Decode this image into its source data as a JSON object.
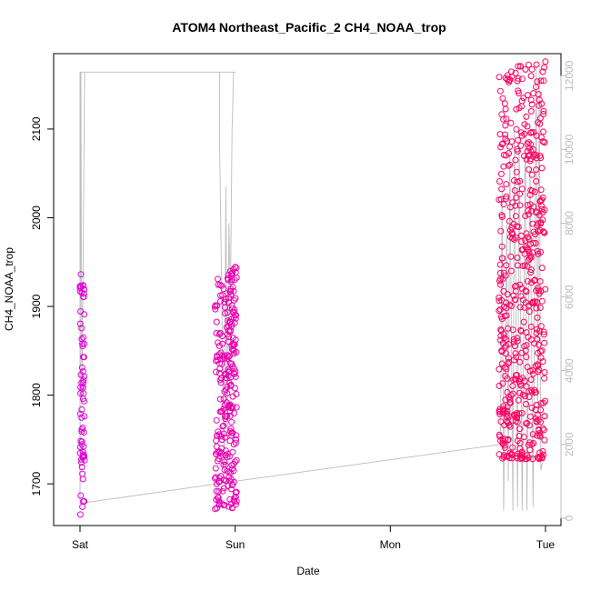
{
  "chart_data": {
    "type": "scatter",
    "title": "ATOM4 Northeast_Pacific_2 CH4_NOAA_trop",
    "xlabel": "Date",
    "ylabel": "CH4_NOAA_trop",
    "x_ticks": [
      "Sat",
      "Sun",
      "Mon",
      "Tue"
    ],
    "x_tick_values": [
      0,
      1,
      2,
      3
    ],
    "xlim": [
      -0.17,
      3.1
    ],
    "ylim": [
      1653,
      2185
    ],
    "y_ticks": [
      1700,
      1800,
      1900,
      2000,
      2100
    ],
    "y2lim": [
      -200,
      12600
    ],
    "y2_ticks": [
      0,
      2000,
      4000,
      6000,
      8000,
      10000,
      12000
    ],
    "grid": false,
    "legend": "none",
    "colors": {
      "point_start": "#dd00dd",
      "point_end": "#ff0055",
      "line": "#bdbdbd",
      "axis": "#000000",
      "right_axis": "#bdbdbd"
    },
    "series": [
      {
        "axis": "left",
        "style": "points",
        "clusters": [
          {
            "x": [
              0.0,
              0.03
            ],
            "y": [
              1665,
              1945
            ],
            "n": 70
          },
          {
            "x": [
              0.87,
              1.01
            ],
            "y": [
              1670,
              1945
            ],
            "n": 260
          },
          {
            "x": [
              2.7,
              3.0
            ],
            "y": [
              1728,
              2180
            ],
            "n": 520
          }
        ]
      },
      {
        "axis": "right",
        "style": "line",
        "x": [
          0.0,
          0.005,
          0.012,
          0.03,
          0.9,
          0.9,
          0.93,
          0.94,
          0.95,
          0.96,
          0.97,
          0.98,
          0.99,
          1.0,
          1.0,
          0.0,
          0.0,
          1.0,
          2.71,
          2.72,
          2.73,
          2.75,
          2.76,
          2.77,
          2.79,
          2.8,
          2.82,
          2.83,
          2.85,
          2.87,
          2.88,
          2.9,
          2.92,
          2.94,
          2.95,
          2.96,
          2.97,
          2.98
        ],
        "y": [
          400,
          12100,
          3000,
          12100,
          12100,
          10000,
          1100,
          9000,
          2000,
          8000,
          6000,
          10500,
          12100,
          12100,
          12100,
          12100,
          400,
          1000,
          2000,
          9000,
          200,
          8000,
          1000,
          10000,
          200,
          10500,
          300,
          10500,
          200,
          11000,
          200,
          9500,
          300,
          12300,
          3000,
          12200,
          1300,
          1500
        ]
      }
    ]
  }
}
